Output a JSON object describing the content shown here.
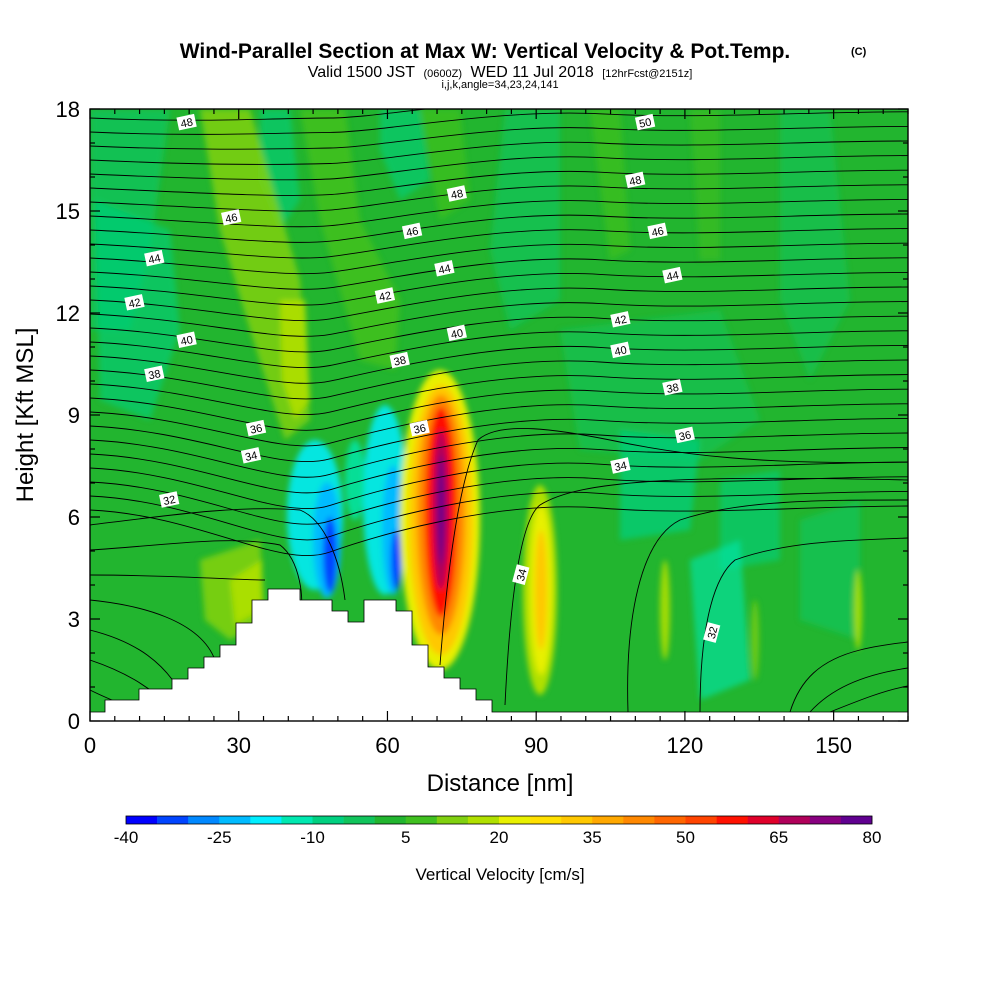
{
  "chart_data": {
    "type": "heatmap",
    "title": "Wind-Parallel Section at Max W: Vertical Velocity & Pot.Temp.",
    "title_mark": "(C)",
    "subtitle_prefix": "Valid 1500 JST",
    "subtitle_utc": "(0600Z)",
    "subtitle_date": "WED 11 Jul 2018",
    "subtitle_run": "[12hrFcst@2151z]",
    "subtitle2": "i,j,k,angle=34,23,24,141",
    "xlabel": "Distance [nm]",
    "ylabel": "Height [Kft MSL]",
    "xlim": [
      0,
      165
    ],
    "ylim": [
      0,
      18
    ],
    "x_ticks": [
      "0",
      "30",
      "60",
      "90",
      "120",
      "150"
    ],
    "y_ticks": [
      "0",
      "3",
      "6",
      "9",
      "12",
      "15",
      "18"
    ],
    "colorbar": {
      "title": "Vertical Velocity [cm/s]",
      "tick_labels": [
        "-40",
        "-25",
        "-10",
        "5",
        "20",
        "35",
        "50",
        "65",
        "80"
      ],
      "levels": [
        -40,
        -35,
        -30,
        -25,
        -20,
        -15,
        -10,
        -5,
        0,
        5,
        10,
        15,
        20,
        25,
        30,
        35,
        40,
        45,
        50,
        55,
        60,
        65,
        70,
        75,
        80
      ],
      "colors": [
        "#0000ff",
        "#0044ff",
        "#0088ff",
        "#00bbff",
        "#00eeff",
        "#00e8b0",
        "#00d080",
        "#11c45c",
        "#22b52f",
        "#40c020",
        "#80d010",
        "#b0e000",
        "#e8f000",
        "#ffe000",
        "#ffc800",
        "#ffa800",
        "#ff8800",
        "#ff6600",
        "#ff4400",
        "#ff1100",
        "#e0002a",
        "#b0005a",
        "#880080",
        "#600090"
      ]
    },
    "contour_labels": [
      {
        "value": "48",
        "x": 19.5,
        "y": 17.6
      },
      {
        "value": "50",
        "x": 112,
        "y": 17.6
      },
      {
        "value": "48",
        "x": 110,
        "y": 15.9
      },
      {
        "value": "48",
        "x": 74,
        "y": 15.5
      },
      {
        "value": "46",
        "x": 28.5,
        "y": 14.8
      },
      {
        "value": "46",
        "x": 65,
        "y": 14.4
      },
      {
        "value": "46",
        "x": 114.5,
        "y": 14.4
      },
      {
        "value": "44",
        "x": 13,
        "y": 13.6
      },
      {
        "value": "44",
        "x": 71.5,
        "y": 13.3
      },
      {
        "value": "44",
        "x": 117.5,
        "y": 13.1
      },
      {
        "value": "42",
        "x": 9,
        "y": 12.3
      },
      {
        "value": "42",
        "x": 59.5,
        "y": 12.5
      },
      {
        "value": "42",
        "x": 107,
        "y": 11.8
      },
      {
        "value": "40",
        "x": 19.5,
        "y": 11.2
      },
      {
        "value": "40",
        "x": 74,
        "y": 11.4
      },
      {
        "value": "40",
        "x": 107,
        "y": 10.9
      },
      {
        "value": "38",
        "x": 13,
        "y": 10.2
      },
      {
        "value": "38",
        "x": 62.5,
        "y": 10.6
      },
      {
        "value": "38",
        "x": 117.5,
        "y": 9.8
      },
      {
        "value": "36",
        "x": 33.5,
        "y": 8.6
      },
      {
        "value": "36",
        "x": 66.5,
        "y": 8.6
      },
      {
        "value": "36",
        "x": 120,
        "y": 8.4
      },
      {
        "value": "34",
        "x": 32.5,
        "y": 7.8
      },
      {
        "value": "34",
        "x": 107,
        "y": 7.5
      },
      {
        "value": "34",
        "x": 87,
        "y": 4.3
      },
      {
        "value": "32",
        "x": 16,
        "y": 6.5
      },
      {
        "value": "32",
        "x": 125.5,
        "y": 2.6
      }
    ]
  }
}
